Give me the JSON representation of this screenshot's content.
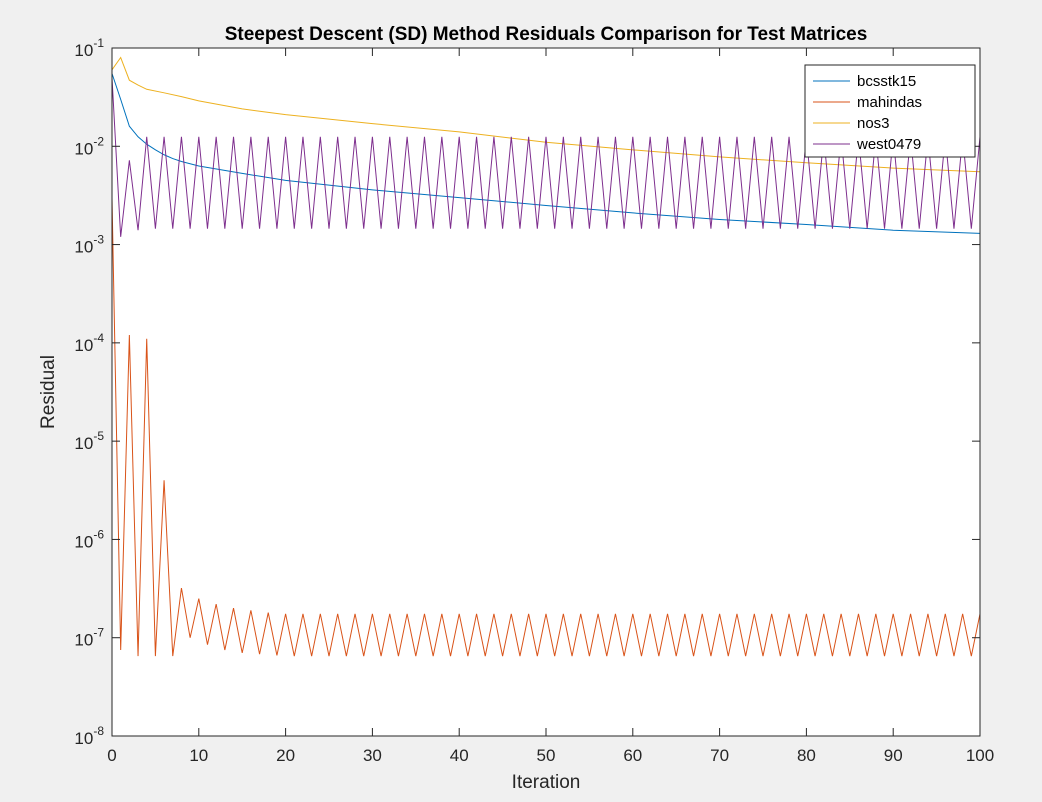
{
  "chart_data": {
    "type": "line",
    "title": "Steepest Descent (SD) Method Residuals Comparison for Test Matrices",
    "xlabel": "Iteration",
    "ylabel": "Residual",
    "xlim": [
      0,
      100
    ],
    "ylim": [
      1e-08,
      0.1
    ],
    "yscale": "log",
    "grid": false,
    "legend_position": "top-right",
    "x_ticks": [
      0,
      10,
      20,
      30,
      40,
      50,
      60,
      70,
      80,
      90,
      100
    ],
    "y_ticks": [
      {
        "value": 1e-08,
        "base": "10",
        "exp": "-8"
      },
      {
        "value": 1e-07,
        "base": "10",
        "exp": "-7"
      },
      {
        "value": 1e-06,
        "base": "10",
        "exp": "-6"
      },
      {
        "value": 1e-05,
        "base": "10",
        "exp": "-5"
      },
      {
        "value": 0.0001,
        "base": "10",
        "exp": "-4"
      },
      {
        "value": 0.001,
        "base": "10",
        "exp": "-3"
      },
      {
        "value": 0.01,
        "base": "10",
        "exp": "-2"
      },
      {
        "value": 0.1,
        "base": "10",
        "exp": "-1"
      }
    ],
    "series": [
      {
        "name": "bcsstk15",
        "color": "#0072BD",
        "pattern": "decay",
        "points": [
          [
            0,
            0.055
          ],
          [
            1,
            0.03
          ],
          [
            2,
            0.016
          ],
          [
            3,
            0.0125
          ],
          [
            4,
            0.0105
          ],
          [
            5,
            0.0092
          ],
          [
            6,
            0.0082
          ],
          [
            7,
            0.0075
          ],
          [
            8,
            0.007
          ],
          [
            10,
            0.0063
          ],
          [
            15,
            0.0053
          ],
          [
            20,
            0.0045
          ],
          [
            30,
            0.0036
          ],
          [
            40,
            0.003
          ],
          [
            50,
            0.0025
          ],
          [
            60,
            0.0021
          ],
          [
            70,
            0.0018
          ],
          [
            80,
            0.0016
          ],
          [
            90,
            0.0014
          ],
          [
            100,
            0.0013
          ]
        ]
      },
      {
        "name": "mahindas",
        "color": "#D95319",
        "pattern": "oscillating",
        "points": [
          [
            0,
            0.003
          ],
          [
            1,
            7.5e-08
          ],
          [
            2,
            0.00012
          ],
          [
            3,
            6.5e-08
          ],
          [
            4,
            0.00011
          ],
          [
            5,
            6.5e-08
          ],
          [
            6,
            4e-06
          ],
          [
            7,
            6.5e-08
          ],
          [
            8,
            3.2e-07
          ],
          [
            9,
            1e-07
          ],
          [
            10,
            2.5e-07
          ],
          [
            11,
            8.5e-08
          ],
          [
            12,
            2.2e-07
          ],
          [
            13,
            7.5e-08
          ],
          [
            14,
            2e-07
          ],
          [
            15,
            7e-08
          ],
          [
            16,
            1.9e-07
          ],
          [
            17,
            6.8e-08
          ],
          [
            18,
            1.8e-07
          ],
          [
            19,
            6.6e-08
          ]
        ],
        "steady_peak": 1.75e-07,
        "steady_trough": 6.5e-08,
        "steady_from": 20,
        "steady_to": 100
      },
      {
        "name": "nos3",
        "color": "#EDB120",
        "pattern": "decay",
        "points": [
          [
            0,
            0.06
          ],
          [
            1,
            0.08
          ],
          [
            2,
            0.047
          ],
          [
            3,
            0.042
          ],
          [
            4,
            0.038
          ],
          [
            6,
            0.035
          ],
          [
            8,
            0.032
          ],
          [
            10,
            0.029
          ],
          [
            15,
            0.024
          ],
          [
            20,
            0.021
          ],
          [
            30,
            0.017
          ],
          [
            40,
            0.014
          ],
          [
            50,
            0.011
          ],
          [
            60,
            0.0092
          ],
          [
            70,
            0.0078
          ],
          [
            80,
            0.0068
          ],
          [
            90,
            0.006
          ],
          [
            100,
            0.0055
          ]
        ]
      },
      {
        "name": "west0479",
        "color": "#7E2F8E",
        "pattern": "oscillating",
        "points": [
          [
            0,
            0.05
          ],
          [
            1,
            0.0012
          ],
          [
            2,
            0.0072
          ],
          [
            3,
            0.0014
          ]
        ],
        "steady_peak": 0.0125,
        "steady_trough": 0.00145,
        "steady_from": 4,
        "steady_to": 100
      }
    ]
  }
}
